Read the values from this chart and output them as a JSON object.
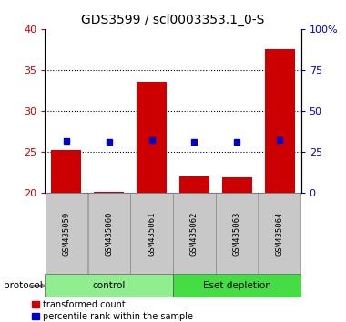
{
  "title": "GDS3599 / scl0003353.1_0-S",
  "samples": [
    "GSM435059",
    "GSM435060",
    "GSM435061",
    "GSM435062",
    "GSM435063",
    "GSM435064"
  ],
  "red_values": [
    25.2,
    20.15,
    33.6,
    22.0,
    21.9,
    37.5
  ],
  "blue_values": [
    32.0,
    31.4,
    32.6,
    31.1,
    31.4,
    32.4
  ],
  "red_base": 20.0,
  "left_ylim": [
    20,
    40
  ],
  "right_ylim": [
    0,
    100
  ],
  "left_yticks": [
    20,
    25,
    30,
    35,
    40
  ],
  "right_yticks": [
    0,
    25,
    50,
    75,
    100
  ],
  "right_yticklabels": [
    "0",
    "25",
    "50",
    "75",
    "100%"
  ],
  "groups": [
    {
      "label": "control",
      "start": 0,
      "end": 3,
      "color": "#90EE90"
    },
    {
      "label": "Eset depletion",
      "start": 3,
      "end": 6,
      "color": "#44DD44"
    }
  ],
  "protocol_label": "protocol",
  "bar_color": "#CC0000",
  "dot_color": "#0000CC",
  "background_color": "#FFFFFF",
  "gray_color": "#C8C8C8",
  "legend_red_label": "transformed count",
  "legend_blue_label": "percentile rank within the sample",
  "title_fontsize": 10,
  "axis_fontsize": 8,
  "label_fontsize": 7.5
}
